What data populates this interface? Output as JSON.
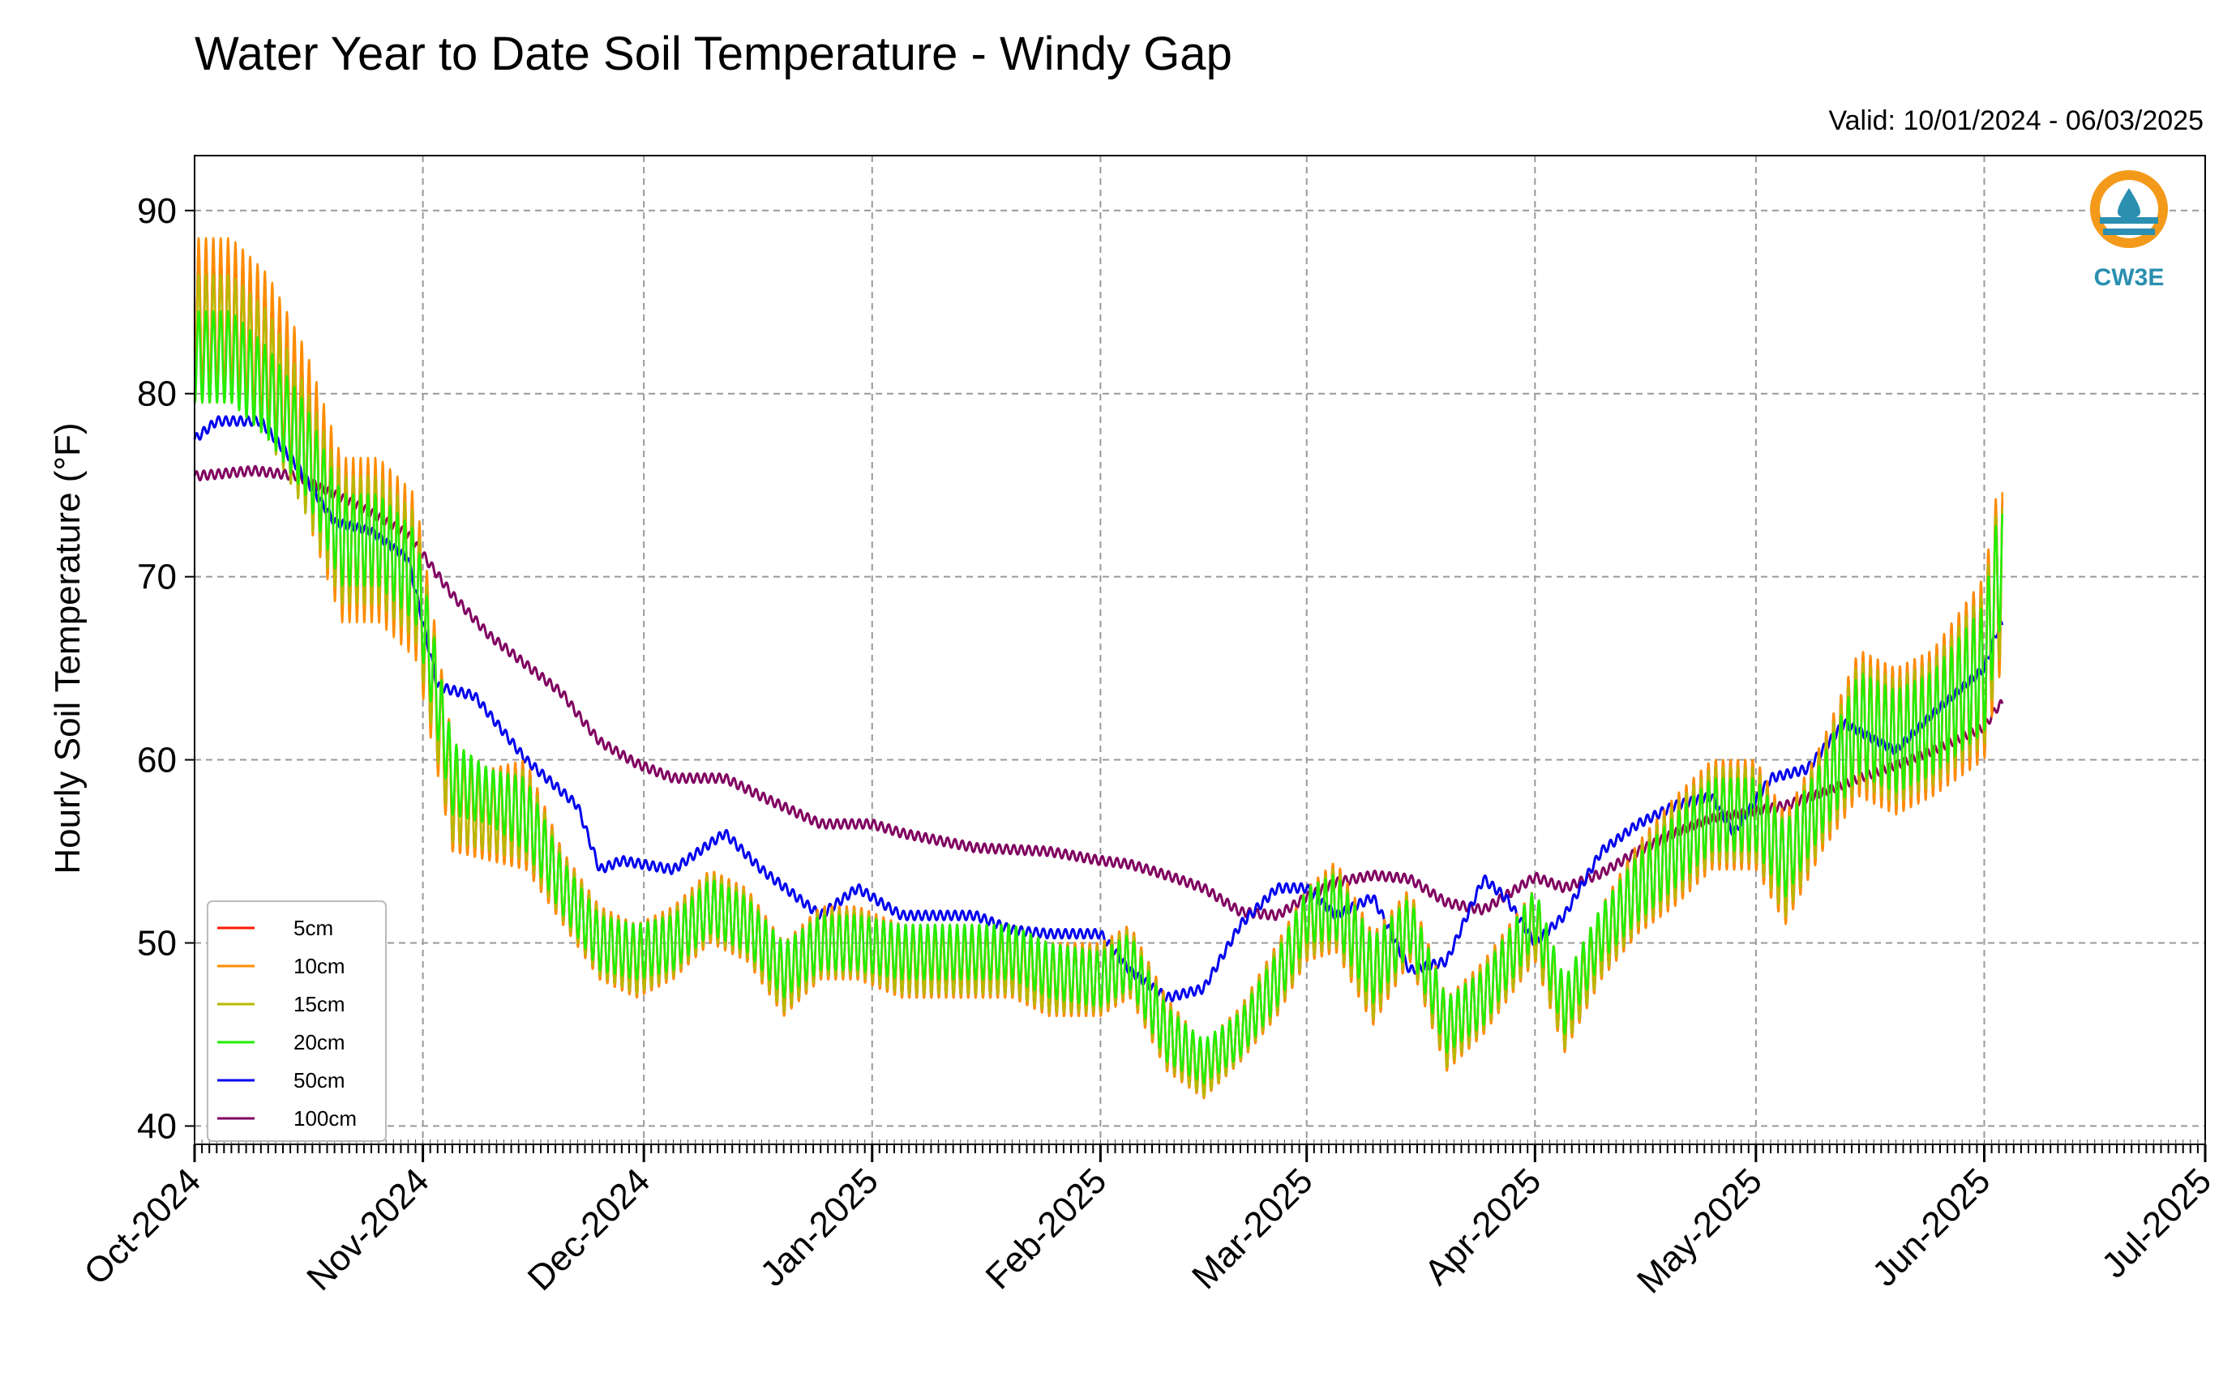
{
  "chart_data": {
    "type": "line",
    "title": "Water Year to Date Soil Temperature - Windy Gap",
    "subtitle": "Valid: 10/01/2024 - 06/03/2025",
    "xlabel": "",
    "ylabel": "Hourly Soil Temperature (°F)",
    "ylim": [
      39,
      93
    ],
    "yticks": [
      40,
      50,
      60,
      70,
      80,
      90
    ],
    "xlim": [
      "2024-10-01",
      "2025-07-01"
    ],
    "xticks": [
      "Oct-2024",
      "Nov-2024",
      "Dec-2024",
      "Jan-2025",
      "Feb-2025",
      "Mar-2025",
      "Apr-2025",
      "May-2025",
      "Jun-2025",
      "Jul-2025"
    ],
    "grid": true,
    "legend_position": "lower-left",
    "logo_text": "CW3E",
    "colors": {
      "5cm": "#ff1a00",
      "10cm": "#ff8c00",
      "15cm": "#b8b800",
      "20cm": "#22ee00",
      "50cm": "#0000ee",
      "100cm": "#800060"
    },
    "series": [
      {
        "name": "5cm",
        "color": "#ff1a00",
        "dates": [
          "2024-10-01",
          "2024-10-06",
          "2024-10-11",
          "2024-10-16",
          "2024-10-21",
          "2024-10-26",
          "2024-10-31",
          "2024-11-05",
          "2024-11-10",
          "2024-11-15",
          "2024-11-20",
          "2024-11-25",
          "2024-11-30",
          "2024-12-05",
          "2024-12-10",
          "2024-12-15",
          "2024-12-20",
          "2024-12-25",
          "2024-12-30",
          "2025-01-05",
          "2025-01-10",
          "2025-01-15",
          "2025-01-20",
          "2025-01-25",
          "2025-02-01",
          "2025-02-05",
          "2025-02-10",
          "2025-02-15",
          "2025-02-20",
          "2025-02-25",
          "2025-03-01",
          "2025-03-05",
          "2025-03-10",
          "2025-03-15",
          "2025-03-20",
          "2025-03-25",
          "2025-04-01",
          "2025-04-05",
          "2025-04-10",
          "2025-04-15",
          "2025-04-20",
          "2025-04-25",
          "2025-05-01",
          "2025-05-05",
          "2025-05-10",
          "2025-05-15",
          "2025-05-20",
          "2025-05-25",
          "2025-06-01",
          "2025-06-03"
        ],
        "mean": [
          84,
          84,
          82,
          78,
          72,
          72,
          70,
          58,
          57,
          57,
          53,
          50,
          49,
          50,
          52,
          51,
          48,
          50,
          50,
          49,
          49,
          49,
          49,
          48,
          48,
          49,
          45,
          43,
          45,
          48,
          51,
          52,
          48,
          51,
          45,
          47,
          51,
          46,
          50,
          53,
          55,
          57,
          57,
          54,
          58,
          62,
          61,
          62,
          65,
          70
        ],
        "amplitude": [
          4,
          4,
          4,
          4,
          4,
          4,
          4,
          3,
          2.5,
          3,
          2,
          2,
          2,
          2,
          2,
          2,
          2,
          2,
          2,
          2,
          2,
          2,
          2,
          2,
          2,
          2,
          2,
          1.5,
          1.5,
          2,
          2,
          2.5,
          2.5,
          2,
          2,
          2,
          2,
          2,
          2,
          2.5,
          3,
          3,
          3,
          3,
          3,
          4,
          4,
          4,
          5,
          5
        ]
      },
      {
        "name": "10cm",
        "color": "#ff8c00",
        "dates": [
          "2024-10-01",
          "2024-10-06",
          "2024-10-11",
          "2024-10-16",
          "2024-10-21",
          "2024-10-26",
          "2024-10-31",
          "2024-11-05",
          "2024-11-10",
          "2024-11-15",
          "2024-11-20",
          "2024-11-25",
          "2024-11-30",
          "2024-12-05",
          "2024-12-10",
          "2024-12-15",
          "2024-12-20",
          "2024-12-25",
          "2024-12-30",
          "2025-01-05",
          "2025-01-10",
          "2025-01-15",
          "2025-01-20",
          "2025-01-25",
          "2025-02-01",
          "2025-02-05",
          "2025-02-10",
          "2025-02-15",
          "2025-02-20",
          "2025-02-25",
          "2025-03-01",
          "2025-03-05",
          "2025-03-10",
          "2025-03-15",
          "2025-03-20",
          "2025-03-25",
          "2025-04-01",
          "2025-04-05",
          "2025-04-10",
          "2025-04-15",
          "2025-04-20",
          "2025-04-25",
          "2025-05-01",
          "2025-05-05",
          "2025-05-10",
          "2025-05-15",
          "2025-05-20",
          "2025-05-25",
          "2025-06-01",
          "2025-06-03"
        ],
        "mean": [
          84,
          84,
          82,
          78,
          72,
          72,
          70,
          58,
          57,
          57,
          53,
          50,
          49,
          50,
          52,
          51,
          48,
          50,
          50,
          49,
          49,
          49,
          49,
          48,
          48,
          49,
          45,
          43,
          45,
          48,
          51,
          52,
          48,
          51,
          45,
          47,
          51,
          46,
          50,
          53,
          55,
          57,
          57,
          54,
          58,
          62,
          61,
          62,
          65,
          70
        ],
        "amplitude": [
          4.5,
          4.5,
          4.5,
          4.5,
          4.5,
          4.5,
          4.5,
          3,
          2.5,
          3,
          2,
          2,
          2,
          2,
          2,
          2,
          2,
          2,
          2,
          2,
          2,
          2,
          2,
          2,
          2,
          2,
          2,
          1.5,
          1.5,
          2,
          2,
          2.5,
          2.5,
          2,
          2,
          2,
          2,
          2,
          2,
          2.5,
          3,
          3,
          3,
          3,
          3,
          4,
          4,
          4,
          5,
          5.5
        ]
      },
      {
        "name": "15cm",
        "color": "#b8b800",
        "dates": [
          "2024-10-01",
          "2024-10-06",
          "2024-10-11",
          "2024-10-16",
          "2024-10-21",
          "2024-10-26",
          "2024-10-31",
          "2024-11-05",
          "2024-11-10",
          "2024-11-15",
          "2024-11-20",
          "2024-11-25",
          "2024-11-30",
          "2024-12-05",
          "2024-12-10",
          "2024-12-15",
          "2024-12-20",
          "2024-12-25",
          "2024-12-30",
          "2025-01-05",
          "2025-01-10",
          "2025-01-15",
          "2025-01-20",
          "2025-01-25",
          "2025-02-01",
          "2025-02-05",
          "2025-02-10",
          "2025-02-15",
          "2025-02-20",
          "2025-02-25",
          "2025-03-01",
          "2025-03-05",
          "2025-03-10",
          "2025-03-15",
          "2025-03-20",
          "2025-03-25",
          "2025-04-01",
          "2025-04-05",
          "2025-04-10",
          "2025-04-15",
          "2025-04-20",
          "2025-04-25",
          "2025-05-01",
          "2025-05-05",
          "2025-05-10",
          "2025-05-15",
          "2025-05-20",
          "2025-05-25",
          "2025-06-01",
          "2025-06-03"
        ],
        "mean": [
          83,
          83,
          81,
          77,
          72,
          72,
          70,
          58,
          57,
          57,
          53,
          50,
          49,
          50,
          52,
          51,
          48,
          50,
          50,
          49,
          49,
          49,
          49,
          48,
          48,
          49,
          45,
          43,
          45,
          48,
          51,
          52,
          48,
          51,
          45,
          47,
          51,
          46,
          50,
          53,
          55,
          57,
          57,
          54,
          58,
          62,
          61,
          62,
          65,
          70
        ],
        "amplitude": [
          3.5,
          3.5,
          3.5,
          3.5,
          3.5,
          3.5,
          3.5,
          2.5,
          2,
          2.5,
          1.8,
          1.8,
          1.8,
          1.8,
          1.8,
          1.8,
          1.8,
          1.8,
          1.8,
          1.8,
          1.8,
          1.8,
          1.8,
          1.8,
          1.8,
          1.8,
          1.8,
          1.4,
          1.4,
          1.8,
          1.8,
          2.2,
          2.2,
          1.8,
          1.8,
          1.8,
          1.8,
          1.8,
          1.8,
          2.2,
          2.6,
          2.6,
          2.6,
          2.6,
          2.6,
          3.4,
          3.4,
          3.4,
          4.2,
          4.5
        ]
      },
      {
        "name": "20cm",
        "color": "#22ee00",
        "dates": [
          "2024-10-01",
          "2024-10-06",
          "2024-10-11",
          "2024-10-16",
          "2024-10-21",
          "2024-10-26",
          "2024-10-31",
          "2024-11-05",
          "2024-11-10",
          "2024-11-15",
          "2024-11-20",
          "2024-11-25",
          "2024-11-30",
          "2024-12-05",
          "2024-12-10",
          "2024-12-15",
          "2024-12-20",
          "2024-12-25",
          "2024-12-30",
          "2025-01-05",
          "2025-01-10",
          "2025-01-15",
          "2025-01-20",
          "2025-01-25",
          "2025-02-01",
          "2025-02-05",
          "2025-02-10",
          "2025-02-15",
          "2025-02-20",
          "2025-02-25",
          "2025-03-01",
          "2025-03-05",
          "2025-03-10",
          "2025-03-15",
          "2025-03-20",
          "2025-03-25",
          "2025-04-01",
          "2025-04-05",
          "2025-04-10",
          "2025-04-15",
          "2025-04-20",
          "2025-04-25",
          "2025-05-01",
          "2025-05-05",
          "2025-05-10",
          "2025-05-15",
          "2025-05-20",
          "2025-05-25",
          "2025-06-01",
          "2025-06-03"
        ],
        "mean": [
          82,
          82,
          80,
          77,
          72,
          72,
          70,
          59,
          58,
          57,
          53,
          50,
          49.5,
          50,
          52,
          51,
          48.5,
          50,
          50,
          49.5,
          49.5,
          49.5,
          49.5,
          48.5,
          48,
          49,
          45,
          43.5,
          45,
          48,
          51.5,
          52,
          48.5,
          51,
          45.5,
          47,
          51.5,
          46.5,
          50.5,
          53,
          55,
          57,
          57,
          54.5,
          58,
          62,
          61,
          62,
          65,
          70.5
        ],
        "amplitude": [
          2.5,
          2.5,
          2.5,
          2.5,
          2.5,
          2.5,
          2.5,
          2,
          1.5,
          2,
          1.5,
          1.5,
          1.5,
          1.5,
          1.5,
          1.5,
          1.5,
          1.5,
          1.5,
          1.5,
          1.5,
          1.5,
          1.5,
          1.5,
          1.5,
          1.5,
          1.5,
          1.2,
          1.2,
          1.5,
          1.5,
          1.8,
          1.8,
          1.5,
          1.5,
          1.5,
          1.5,
          1.5,
          1.5,
          1.8,
          2,
          2,
          2,
          2,
          2,
          2.8,
          2.8,
          2.8,
          3.5,
          3.5
        ]
      },
      {
        "name": "50cm",
        "color": "#0000ee",
        "dates": [
          "2024-10-01",
          "2024-10-04",
          "2024-10-10",
          "2024-10-15",
          "2024-10-20",
          "2024-10-25",
          "2024-10-30",
          "2024-11-03",
          "2024-11-08",
          "2024-11-15",
          "2024-11-22",
          "2024-11-25",
          "2024-11-28",
          "2024-12-05",
          "2024-12-12",
          "2024-12-17",
          "2024-12-25",
          "2024-12-30",
          "2025-01-05",
          "2025-01-10",
          "2025-01-15",
          "2025-01-20",
          "2025-01-25",
          "2025-02-01",
          "2025-02-05",
          "2025-02-10",
          "2025-02-15",
          "2025-02-20",
          "2025-02-25",
          "2025-03-01",
          "2025-03-05",
          "2025-03-10",
          "2025-03-15",
          "2025-03-20",
          "2025-03-25",
          "2025-03-28",
          "2025-04-01",
          "2025-04-05",
          "2025-04-10",
          "2025-04-15",
          "2025-04-20",
          "2025-04-25",
          "2025-04-28",
          "2025-05-03",
          "2025-05-08",
          "2025-05-13",
          "2025-05-20",
          "2025-05-25",
          "2025-06-01",
          "2025-06-03"
        ],
        "values": [
          77.5,
          78.5,
          78.5,
          76,
          73,
          72.5,
          71,
          64,
          63.5,
          60,
          57.5,
          54,
          54.5,
          54,
          56,
          54,
          51.5,
          53,
          51.5,
          51.5,
          51.5,
          50.7,
          50.5,
          50.5,
          48.5,
          47,
          47.5,
          51,
          53,
          53,
          51.5,
          52.5,
          48.5,
          49,
          53.5,
          52.5,
          50,
          51.5,
          55,
          56.5,
          57.5,
          58,
          56,
          59,
          59.5,
          62,
          60.5,
          62.5,
          65,
          67.3
        ]
      },
      {
        "name": "100cm",
        "color": "#800060",
        "dates": [
          "2024-10-01",
          "2024-10-04",
          "2024-10-09",
          "2024-10-15",
          "2024-10-20",
          "2024-10-25",
          "2024-10-30",
          "2024-11-05",
          "2024-11-10",
          "2024-11-15",
          "2024-11-20",
          "2024-11-22",
          "2024-11-25",
          "2024-11-30",
          "2024-12-05",
          "2024-12-12",
          "2024-12-17",
          "2024-12-25",
          "2025-01-01",
          "2025-01-05",
          "2025-01-15",
          "2025-01-25",
          "2025-02-01",
          "2025-02-05",
          "2025-02-10",
          "2025-02-15",
          "2025-02-20",
          "2025-02-25",
          "2025-03-01",
          "2025-03-05",
          "2025-03-10",
          "2025-03-15",
          "2025-03-20",
          "2025-03-25",
          "2025-04-01",
          "2025-04-05",
          "2025-04-10",
          "2025-04-15",
          "2025-04-20",
          "2025-04-25",
          "2025-05-01",
          "2025-05-05",
          "2025-05-10",
          "2025-05-15",
          "2025-05-20",
          "2025-05-25",
          "2025-06-01",
          "2025-06-03"
        ],
        "values": [
          75.5,
          75.6,
          75.8,
          75.5,
          74.5,
          73.5,
          72.3,
          69,
          66.8,
          65.2,
          63.6,
          62.5,
          61,
          59.8,
          59,
          59,
          58,
          56.5,
          56.5,
          56,
          55.2,
          55,
          54.5,
          54.3,
          53.7,
          53,
          51.7,
          51.5,
          52.5,
          53.3,
          53.7,
          53.5,
          52.2,
          51.8,
          53.6,
          53,
          53.8,
          55,
          56,
          56.8,
          57.2,
          57.5,
          58.2,
          59,
          59.7,
          60.5,
          61.8,
          63
        ]
      }
    ]
  }
}
